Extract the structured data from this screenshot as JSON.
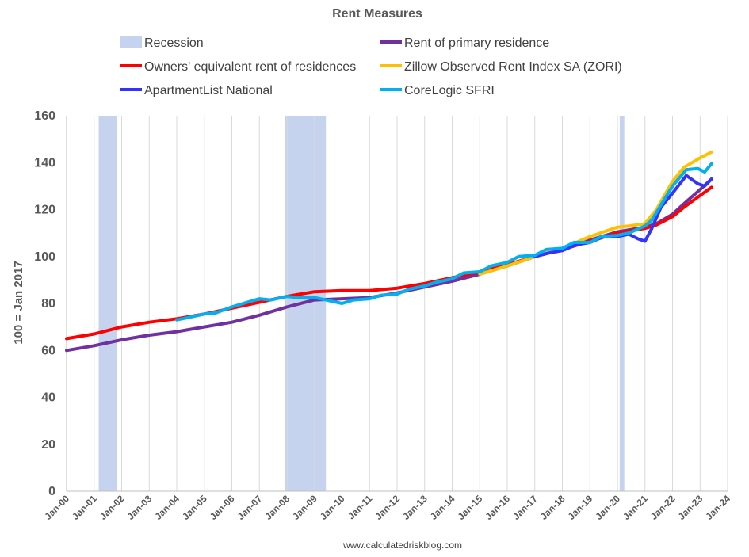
{
  "chart_data": {
    "type": "line",
    "title": "Rent Measures",
    "ylabel": "100 = Jan 2017",
    "xlabel": "",
    "source": "www.calculatedriskblog.com",
    "ylim": [
      0,
      160
    ],
    "yticks": [
      0,
      20,
      40,
      60,
      80,
      100,
      120,
      140,
      160
    ],
    "xlim": [
      "2000-01",
      "2024-01"
    ],
    "xticks": [
      "Jan-00",
      "Jan-01",
      "Jan-02",
      "Jan-03",
      "Jan-04",
      "Jan-05",
      "Jan-06",
      "Jan-07",
      "Jan-08",
      "Jan-09",
      "Jan-10",
      "Jan-11",
      "Jan-12",
      "Jan-13",
      "Jan-14",
      "Jan-15",
      "Jan-16",
      "Jan-17",
      "Jan-18",
      "Jan-19",
      "Jan-20",
      "Jan-21",
      "Jan-22",
      "Jan-23",
      "Jan-24"
    ],
    "grid": {
      "vertical": true,
      "horizontal": false
    },
    "legend_placement": "top",
    "recessions": [
      {
        "start": "2001-03",
        "end": "2001-11"
      },
      {
        "start": "2007-12",
        "end": "2009-06"
      },
      {
        "start": "2020-02",
        "end": "2020-04"
      }
    ],
    "recession_label": "Recession",
    "recession_color": "#c5d3ef",
    "series": [
      {
        "name": "Rent of primary residence",
        "color": "#7030a0",
        "points": [
          [
            "2000-01",
            60
          ],
          [
            "2001-01",
            62
          ],
          [
            "2002-01",
            64.5
          ],
          [
            "2003-01",
            66.5
          ],
          [
            "2004-01",
            68
          ],
          [
            "2005-01",
            70
          ],
          [
            "2006-01",
            72
          ],
          [
            "2007-01",
            75
          ],
          [
            "2008-01",
            78.5
          ],
          [
            "2009-01",
            81.5
          ],
          [
            "2010-01",
            82
          ],
          [
            "2011-01",
            82.5
          ],
          [
            "2012-01",
            84.5
          ],
          [
            "2013-01",
            87
          ],
          [
            "2014-01",
            89.5
          ],
          [
            "2015-01",
            92.5
          ],
          [
            "2016-01",
            96
          ],
          [
            "2017-01",
            100
          ],
          [
            "2018-01",
            103.5
          ],
          [
            "2019-01",
            107
          ],
          [
            "2020-01",
            110.5
          ],
          [
            "2021-01",
            112.5
          ],
          [
            "2021-06",
            114
          ],
          [
            "2022-01",
            118
          ],
          [
            "2022-06",
            122.5
          ],
          [
            "2023-01",
            128.5
          ],
          [
            "2023-06",
            133
          ]
        ]
      },
      {
        "name": "Owners' equivalent rent of residences",
        "color": "#ff0000",
        "points": [
          [
            "2000-01",
            65
          ],
          [
            "2001-01",
            67
          ],
          [
            "2002-01",
            70
          ],
          [
            "2003-01",
            72
          ],
          [
            "2004-01",
            73.5
          ],
          [
            "2005-01",
            75.5
          ],
          [
            "2006-01",
            78
          ],
          [
            "2007-01",
            80.5
          ],
          [
            "2008-01",
            83
          ],
          [
            "2009-01",
            85
          ],
          [
            "2010-01",
            85.5
          ],
          [
            "2011-01",
            85.5
          ],
          [
            "2012-01",
            86.5
          ],
          [
            "2013-01",
            88.5
          ],
          [
            "2014-01",
            91
          ],
          [
            "2015-01",
            93.5
          ],
          [
            "2016-01",
            96.5
          ],
          [
            "2017-01",
            100
          ],
          [
            "2018-01",
            103
          ],
          [
            "2019-01",
            106.5
          ],
          [
            "2020-01",
            110
          ],
          [
            "2021-01",
            112
          ],
          [
            "2021-06",
            113.5
          ],
          [
            "2022-01",
            117
          ],
          [
            "2022-06",
            121
          ],
          [
            "2023-01",
            126
          ],
          [
            "2023-06",
            129.5
          ]
        ]
      },
      {
        "name": "Zillow Observed Rent Index SA (ZORI)",
        "color": "#ffc000",
        "points": [
          [
            "2015-01",
            92.5
          ],
          [
            "2016-01",
            96
          ],
          [
            "2017-01",
            100
          ],
          [
            "2018-01",
            103.5
          ],
          [
            "2019-01",
            108.5
          ],
          [
            "2020-01",
            112.5
          ],
          [
            "2020-06",
            113
          ],
          [
            "2021-01",
            114
          ],
          [
            "2021-06",
            120
          ],
          [
            "2022-01",
            132
          ],
          [
            "2022-06",
            138
          ],
          [
            "2023-01",
            142
          ],
          [
            "2023-06",
            144.5
          ]
        ]
      },
      {
        "name": "ApartmentList National",
        "color": "#3333ff",
        "points": [
          [
            "2017-01",
            100
          ],
          [
            "2017-07",
            101.5
          ],
          [
            "2018-01",
            102.5
          ],
          [
            "2018-07",
            105
          ],
          [
            "2019-01",
            106
          ],
          [
            "2019-07",
            108.5
          ],
          [
            "2020-01",
            108.5
          ],
          [
            "2020-06",
            109.5
          ],
          [
            "2020-10",
            107.5
          ],
          [
            "2021-01",
            106.5
          ],
          [
            "2021-04",
            112
          ],
          [
            "2021-08",
            121
          ],
          [
            "2022-01",
            127
          ],
          [
            "2022-07",
            134.5
          ],
          [
            "2022-12",
            131
          ],
          [
            "2023-03",
            130
          ],
          [
            "2023-06",
            133
          ]
        ]
      },
      {
        "name": "CoreLogic SFRI",
        "color": "#00b0f0",
        "points": [
          [
            "2004-01",
            73
          ],
          [
            "2004-06",
            74
          ],
          [
            "2005-01",
            75.5
          ],
          [
            "2005-06",
            76
          ],
          [
            "2006-01",
            78.5
          ],
          [
            "2006-06",
            80
          ],
          [
            "2007-01",
            82
          ],
          [
            "2007-06",
            81.5
          ],
          [
            "2008-01",
            83
          ],
          [
            "2008-06",
            82.5
          ],
          [
            "2009-01",
            82.5
          ],
          [
            "2009-06",
            81.5
          ],
          [
            "2010-01",
            80
          ],
          [
            "2010-06",
            81.5
          ],
          [
            "2011-01",
            82
          ],
          [
            "2011-06",
            83.5
          ],
          [
            "2012-01",
            84
          ],
          [
            "2012-06",
            86
          ],
          [
            "2013-01",
            87.5
          ],
          [
            "2013-06",
            89
          ],
          [
            "2014-01",
            90.5
          ],
          [
            "2014-06",
            93
          ],
          [
            "2015-01",
            93.5
          ],
          [
            "2015-06",
            96
          ],
          [
            "2016-01",
            97.5
          ],
          [
            "2016-06",
            100
          ],
          [
            "2017-01",
            100.5
          ],
          [
            "2017-06",
            103
          ],
          [
            "2018-01",
            103.5
          ],
          [
            "2018-06",
            106
          ],
          [
            "2019-01",
            106
          ],
          [
            "2019-06",
            108.5
          ],
          [
            "2020-01",
            109
          ],
          [
            "2020-06",
            110
          ],
          [
            "2021-01",
            113
          ],
          [
            "2021-04",
            115.5
          ],
          [
            "2021-08",
            122
          ],
          [
            "2022-01",
            130
          ],
          [
            "2022-07",
            137
          ],
          [
            "2022-12",
            137.5
          ],
          [
            "2023-03",
            136
          ],
          [
            "2023-06",
            139.5
          ]
        ]
      }
    ]
  }
}
